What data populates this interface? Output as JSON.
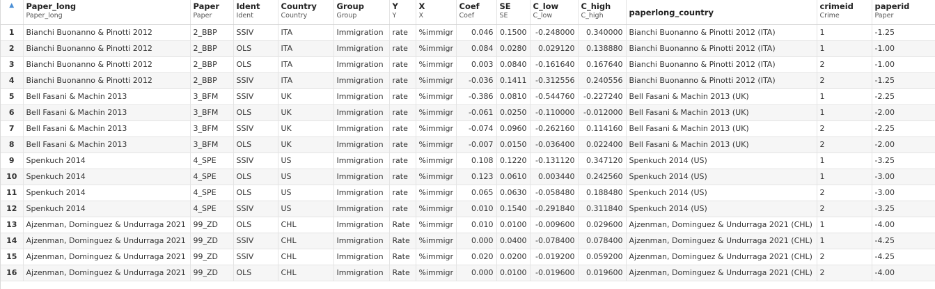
{
  "table": {
    "sort_icon": "sort-ascending-icon",
    "columns": [
      {
        "name": "Paper_long",
        "label": "Paper_long"
      },
      {
        "name": "Paper",
        "label": "Paper"
      },
      {
        "name": "Ident",
        "label": "Ident"
      },
      {
        "name": "Country",
        "label": "Country"
      },
      {
        "name": "Group",
        "label": "Group"
      },
      {
        "name": "Y",
        "label": "Y"
      },
      {
        "name": "X",
        "label": "X"
      },
      {
        "name": "Coef",
        "label": "Coef"
      },
      {
        "name": "SE",
        "label": "SE"
      },
      {
        "name": "C_low",
        "label": "C_low"
      },
      {
        "name": "C_high",
        "label": "C_high"
      },
      {
        "name": "paperlong_country",
        "label": ""
      },
      {
        "name": "crimeid",
        "label": "Crime"
      },
      {
        "name": "paperid",
        "label": "Paper"
      }
    ],
    "rows": [
      {
        "n": "1",
        "cells": [
          "Bianchi Buonanno & Pinotti 2012",
          "2_BBP",
          "SSIV",
          "ITA",
          "Immigration",
          "rate",
          "%immigr",
          "0.046",
          "0.1500",
          "-0.248000",
          "0.340000",
          "Bianchi Buonanno & Pinotti 2012 (ITA)",
          "1",
          "-1.25"
        ]
      },
      {
        "n": "2",
        "cells": [
          "Bianchi Buonanno & Pinotti 2012",
          "2_BBP",
          "OLS",
          "ITA",
          "Immigration",
          "rate",
          "%immigr",
          "0.084",
          "0.0280",
          "0.029120",
          "0.138880",
          "Bianchi Buonanno & Pinotti 2012 (ITA)",
          "1",
          "-1.00"
        ]
      },
      {
        "n": "3",
        "cells": [
          "Bianchi Buonanno & Pinotti 2012",
          "2_BBP",
          "OLS",
          "ITA",
          "Immigration",
          "rate",
          "%immigr",
          "0.003",
          "0.0840",
          "-0.161640",
          "0.167640",
          "Bianchi Buonanno & Pinotti 2012 (ITA)",
          "2",
          "-1.00"
        ]
      },
      {
        "n": "4",
        "cells": [
          "Bianchi Buonanno & Pinotti 2012",
          "2_BBP",
          "SSIV",
          "ITA",
          "Immigration",
          "rate",
          "%immigr",
          "-0.036",
          "0.1411",
          "-0.312556",
          "0.240556",
          "Bianchi Buonanno & Pinotti 2012 (ITA)",
          "2",
          "-1.25"
        ]
      },
      {
        "n": "5",
        "cells": [
          "Bell Fasani & Machin 2013",
          "3_BFM",
          "SSIV",
          "UK",
          "Immigration",
          "rate",
          "%immigr",
          "-0.386",
          "0.0810",
          "-0.544760",
          "-0.227240",
          "Bell Fasani & Machin 2013 (UK)",
          "1",
          "-2.25"
        ]
      },
      {
        "n": "6",
        "cells": [
          "Bell Fasani & Machin 2013",
          "3_BFM",
          "OLS",
          "UK",
          "Immigration",
          "rate",
          "%immigr",
          "-0.061",
          "0.0250",
          "-0.110000",
          "-0.012000",
          "Bell Fasani & Machin 2013 (UK)",
          "1",
          "-2.00"
        ]
      },
      {
        "n": "7",
        "cells": [
          "Bell Fasani & Machin 2013",
          "3_BFM",
          "SSIV",
          "UK",
          "Immigration",
          "rate",
          "%immigr",
          "-0.074",
          "0.0960",
          "-0.262160",
          "0.114160",
          "Bell Fasani & Machin 2013 (UK)",
          "2",
          "-2.25"
        ]
      },
      {
        "n": "8",
        "cells": [
          "Bell Fasani & Machin 2013",
          "3_BFM",
          "OLS",
          "UK",
          "Immigration",
          "rate",
          "%immigr",
          "-0.007",
          "0.0150",
          "-0.036400",
          "0.022400",
          "Bell Fasani & Machin 2013 (UK)",
          "2",
          "-2.00"
        ]
      },
      {
        "n": "9",
        "cells": [
          "Spenkuch 2014",
          "4_SPE",
          "SSIV",
          "US",
          "Immigration",
          "rate",
          "%immigr",
          "0.108",
          "0.1220",
          "-0.131120",
          "0.347120",
          "Spenkuch 2014 (US)",
          "1",
          "-3.25"
        ]
      },
      {
        "n": "10",
        "cells": [
          "Spenkuch 2014",
          "4_SPE",
          "OLS",
          "US",
          "Immigration",
          "rate",
          "%immigr",
          "0.123",
          "0.0610",
          "0.003440",
          "0.242560",
          "Spenkuch 2014 (US)",
          "1",
          "-3.00"
        ]
      },
      {
        "n": "11",
        "cells": [
          "Spenkuch 2014",
          "4_SPE",
          "OLS",
          "US",
          "Immigration",
          "rate",
          "%immigr",
          "0.065",
          "0.0630",
          "-0.058480",
          "0.188480",
          "Spenkuch 2014 (US)",
          "2",
          "-3.00"
        ]
      },
      {
        "n": "12",
        "cells": [
          "Spenkuch 2014",
          "4_SPE",
          "SSIV",
          "US",
          "Immigration",
          "rate",
          "%immigr",
          "0.010",
          "0.1540",
          "-0.291840",
          "0.311840",
          "Spenkuch 2014 (US)",
          "2",
          "-3.25"
        ]
      },
      {
        "n": "13",
        "cells": [
          "Ajzenman, Dominguez & Undurraga 2021",
          "99_ZD",
          "OLS",
          "CHL",
          "Immigration",
          "Rate",
          "%immigr",
          "0.010",
          "0.0100",
          "-0.009600",
          "0.029600",
          "Ajzenman, Dominguez & Undurraga 2021 (CHL)",
          "1",
          "-4.00"
        ]
      },
      {
        "n": "14",
        "cells": [
          "Ajzenman, Dominguez & Undurraga 2021",
          "99_ZD",
          "SSIV",
          "CHL",
          "Immigration",
          "Rate",
          "%immigr",
          "0.000",
          "0.0400",
          "-0.078400",
          "0.078400",
          "Ajzenman, Dominguez & Undurraga 2021 (CHL)",
          "1",
          "-4.25"
        ]
      },
      {
        "n": "15",
        "cells": [
          "Ajzenman, Dominguez & Undurraga 2021",
          "99_ZD",
          "SSIV",
          "CHL",
          "Immigration",
          "Rate",
          "%immigr",
          "0.020",
          "0.0200",
          "-0.019200",
          "0.059200",
          "Ajzenman, Dominguez & Undurraga 2021 (CHL)",
          "2",
          "-4.25"
        ]
      },
      {
        "n": "16",
        "cells": [
          "Ajzenman, Dominguez & Undurraga 2021",
          "99_ZD",
          "OLS",
          "CHL",
          "Immigration",
          "Rate",
          "%immigr",
          "0.000",
          "0.0100",
          "-0.019600",
          "0.019600",
          "Ajzenman, Dominguez & Undurraga 2021 (CHL)",
          "2",
          "-4.00"
        ]
      }
    ]
  }
}
